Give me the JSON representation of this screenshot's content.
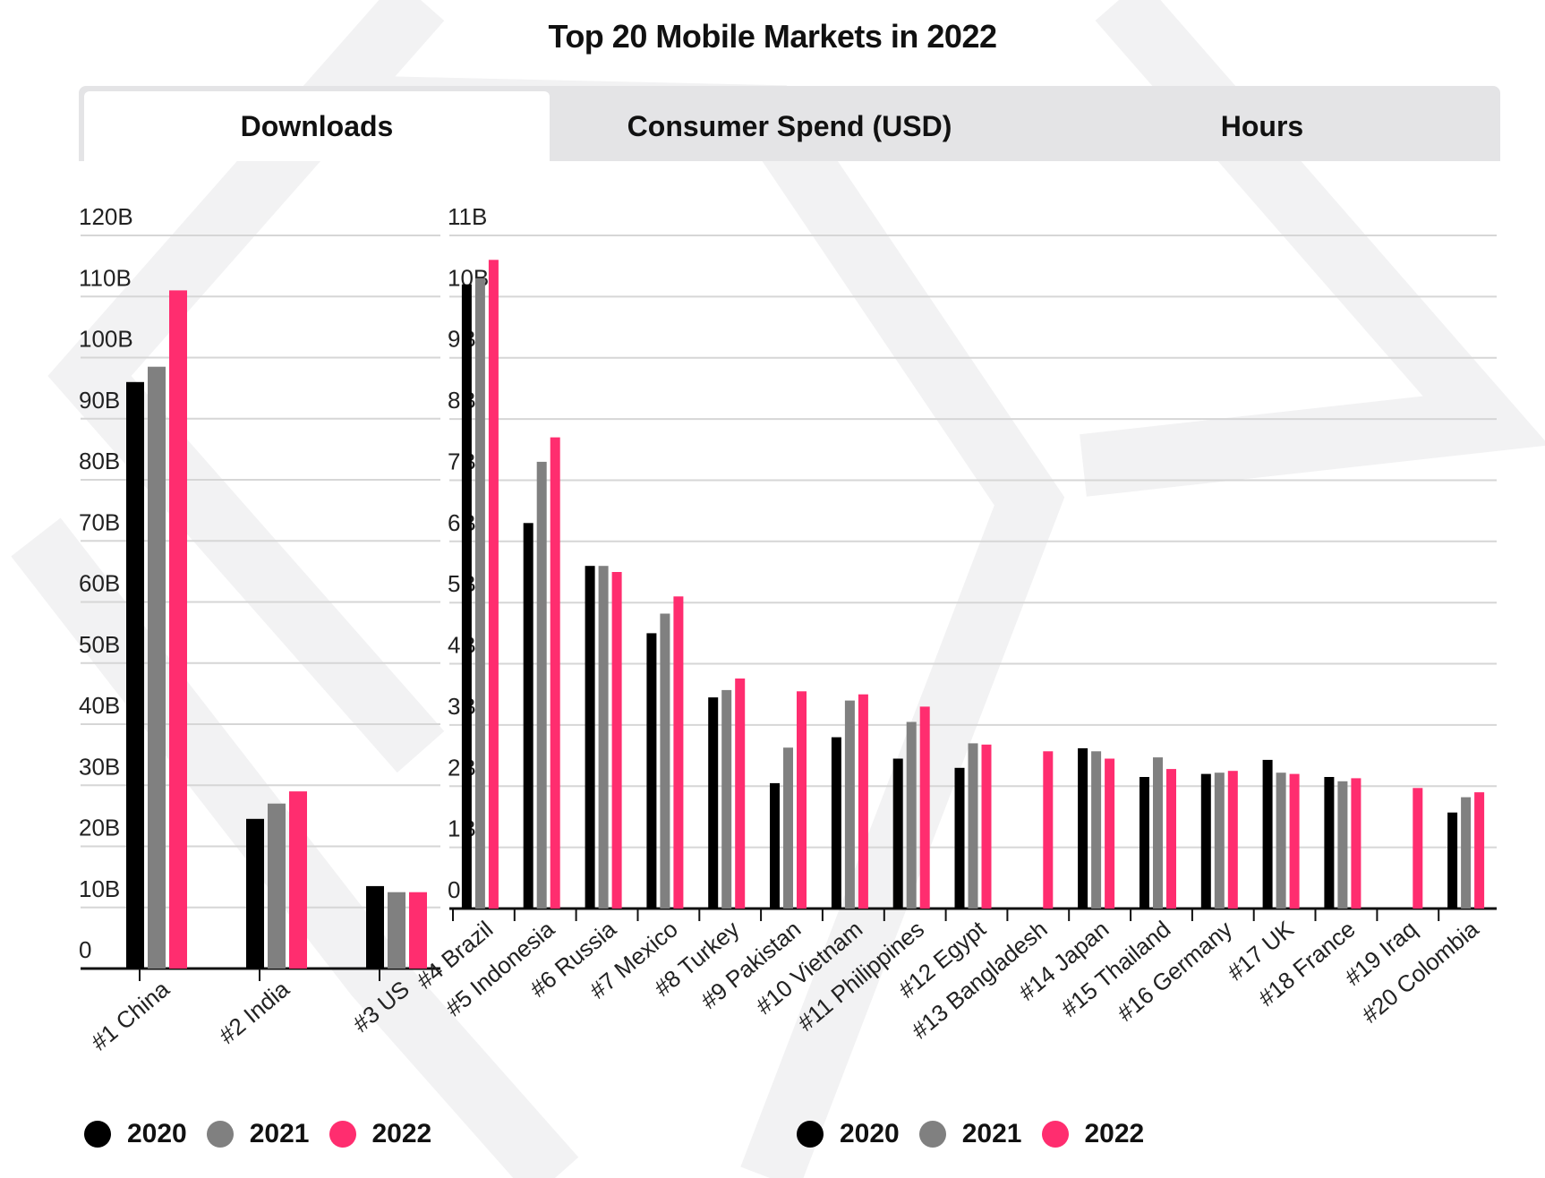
{
  "title": "Top 20 Mobile Markets in 2022",
  "tabs": [
    {
      "label": "Downloads",
      "active": true
    },
    {
      "label": "Consumer Spend (USD)",
      "active": false
    },
    {
      "label": "Hours",
      "active": false
    }
  ],
  "colors": {
    "2020": "#000000",
    "2021": "#808080",
    "2022": "#ff2d6f"
  },
  "legend": [
    "2020",
    "2021",
    "2022"
  ],
  "chart_data": [
    {
      "type": "bar",
      "categories": [
        "#1 China",
        "#2 India",
        "#3 US"
      ],
      "series": [
        {
          "name": "2020",
          "values": [
            96,
            24.5,
            13.5
          ]
        },
        {
          "name": "2021",
          "values": [
            98.5,
            27,
            12.5
          ]
        },
        {
          "name": "2022",
          "values": [
            111,
            29,
            12.5
          ]
        }
      ],
      "ytick_labels": [
        "0",
        "10B",
        "20B",
        "30B",
        "40B",
        "50B",
        "60B",
        "70B",
        "80B",
        "90B",
        "100B",
        "110B",
        "120B"
      ],
      "ylim": [
        0,
        120
      ],
      "grid": true,
      "legend_position": "bottom-left"
    },
    {
      "type": "bar",
      "categories": [
        "#4 Brazil",
        "#5 Indonesia",
        "#6 Russia",
        "#7 Mexico",
        "#8 Turkey",
        "#9 Pakistan",
        "#10 Vietnam",
        "#11 Philippines",
        "#12 Egypt",
        "#13 Bangladesh",
        "#14 Japan",
        "#15 Thailand",
        "#16 Germany",
        "#17 UK",
        "#18 France",
        "#19 Iraq",
        "#20 Colombia"
      ],
      "series": [
        {
          "name": "2020",
          "values": [
            10.2,
            6.3,
            5.6,
            4.5,
            3.45,
            2.05,
            2.8,
            2.45,
            2.3,
            null,
            2.62,
            2.15,
            2.2,
            2.43,
            2.15,
            null,
            1.57
          ]
        },
        {
          "name": "2021",
          "values": [
            10.3,
            7.3,
            5.6,
            4.82,
            3.57,
            2.63,
            3.4,
            3.05,
            2.7,
            null,
            2.57,
            2.47,
            2.22,
            2.22,
            2.08,
            null,
            1.82
          ]
        },
        {
          "name": "2022",
          "values": [
            10.6,
            7.7,
            5.5,
            5.1,
            3.76,
            3.55,
            3.5,
            3.3,
            2.68,
            2.57,
            2.45,
            2.28,
            2.25,
            2.2,
            2.13,
            1.97,
            1.9
          ]
        }
      ],
      "ytick_labels": [
        "0",
        "1B",
        "2B",
        "3B",
        "4B",
        "5B",
        "6B",
        "7B",
        "8B",
        "9B",
        "10B",
        "11B"
      ],
      "ylim": [
        0,
        11
      ],
      "grid": true,
      "legend_position": "bottom-center"
    }
  ]
}
